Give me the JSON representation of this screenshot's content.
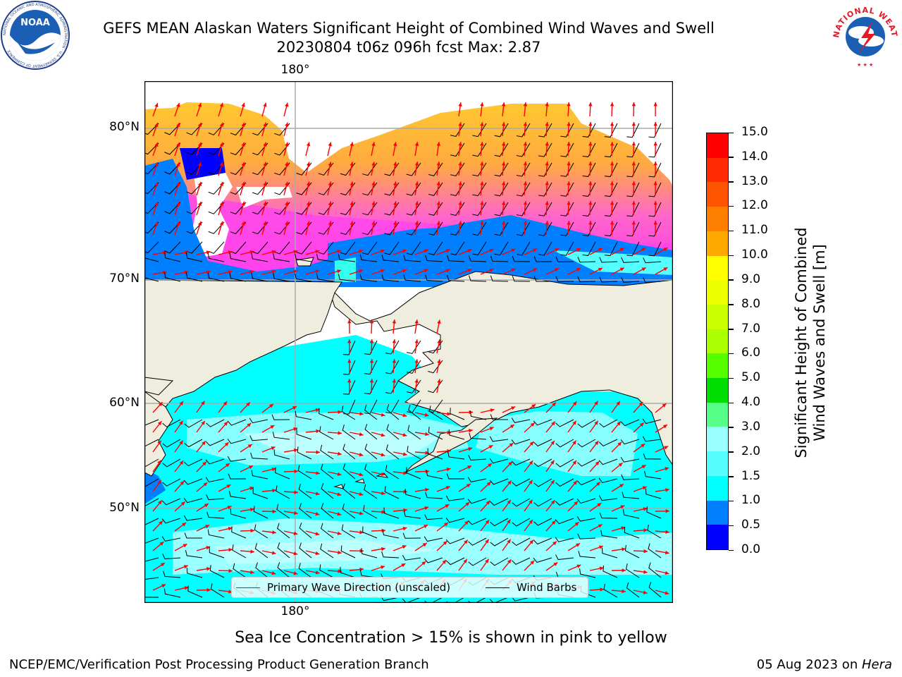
{
  "header": {
    "title_line1": "GEFS MEAN Alaskan Waters Significant Height of Combined Wind Waves and Swell",
    "title_line2": "20230804 t06z 096h fcst   Max: 2.87"
  },
  "logos": {
    "left": {
      "name": "NOAA",
      "ring_text": "NATIONAL OCEANIC AND ATMOSPHERIC ADMINISTRATION · U.S. DEPARTMENT OF COMMERCE"
    },
    "right": {
      "name": "NATIONAL WEATHER SERVICE"
    }
  },
  "map": {
    "lon_top_label": "180°",
    "lon_bottom_label": "180°",
    "lat_labels": [
      "80°N",
      "70°N",
      "60°N",
      "50°N"
    ],
    "colors": {
      "land": "#efedde",
      "ocean_low": "#00ffff",
      "grid": "#aaaaaa"
    }
  },
  "legend": {
    "wave_label": "Primary Wave Direction (unscaled)",
    "wave_color": "#ff0000",
    "wind_label": "Wind Barbs",
    "wind_color": "#000000"
  },
  "colorbar": {
    "title_line1": "Significant Height of Combined",
    "title_line2": "Wind Waves and Swell [m]",
    "ticks": [
      "15.0",
      "14.0",
      "13.0",
      "12.0",
      "11.0",
      "10.0",
      "9.0",
      "8.0",
      "7.0",
      "6.0",
      "5.0",
      "4.0",
      "3.0",
      "2.0",
      "1.5",
      "1.0",
      "0.5",
      "0.0"
    ],
    "colors_top_to_bottom": [
      "#ff0000",
      "#ff2a00",
      "#ff5500",
      "#ff8000",
      "#ffaa00",
      "#ffff00",
      "#eeff00",
      "#ccff00",
      "#aaff00",
      "#55ff00",
      "#00dd00",
      "#55ff88",
      "#99ffff",
      "#55ffff",
      "#00ffff",
      "#0080ff",
      "#0000ff"
    ]
  },
  "footer": {
    "note": "Sea Ice Concentration > 15% is shown in pink to yellow",
    "left": "NCEP/EMC/Verification Post Processing Product Generation Branch",
    "right_date": "05 Aug 2023 on ",
    "right_host": "Hera"
  }
}
